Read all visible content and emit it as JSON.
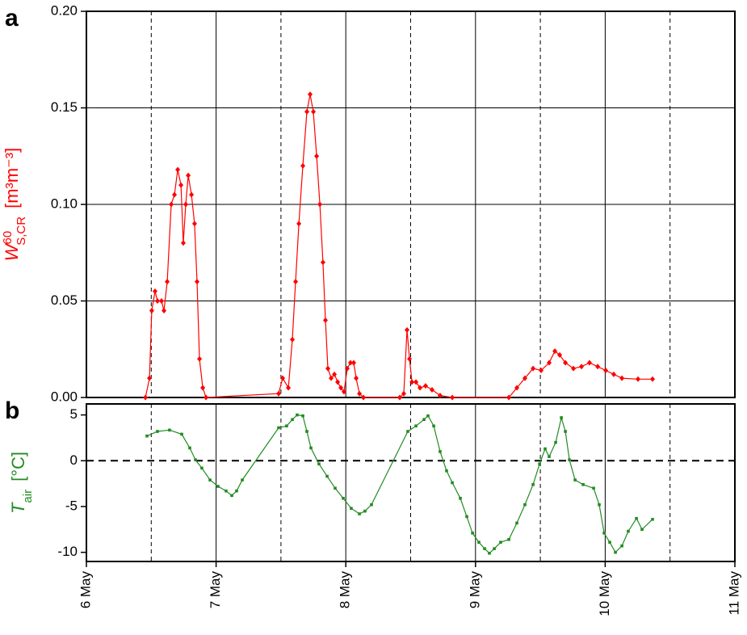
{
  "chart_data": [
    {
      "type": "line",
      "panel_label": "a",
      "marker": "diamond",
      "color": "#ff0000",
      "grid": true,
      "ylabel": {
        "symbol": "W",
        "sup": "60",
        "sub": "S,CR",
        "unit": "[m³m⁻³]"
      },
      "xlim": [
        6,
        11
      ],
      "xticks": [
        6,
        7,
        8,
        9,
        10,
        11
      ],
      "ylim": [
        0,
        0.2
      ],
      "yticks": [
        {
          "value": 0,
          "label": "0.00"
        },
        {
          "value": 0.05,
          "label": "0.05"
        },
        {
          "value": 0.1,
          "label": "0.10"
        },
        {
          "value": 0.15,
          "label": "0.15"
        },
        {
          "value": 0.2,
          "label": "0.20"
        }
      ],
      "x": [
        6.455,
        6.486,
        6.504,
        6.529,
        6.548,
        6.579,
        6.598,
        6.623,
        6.654,
        6.679,
        6.704,
        6.729,
        6.747,
        6.766,
        6.785,
        6.81,
        6.834,
        6.853,
        6.872,
        6.897,
        6.922,
        7.482,
        7.513,
        7.557,
        7.588,
        7.613,
        7.638,
        7.669,
        7.7,
        7.725,
        7.75,
        7.775,
        7.8,
        7.824,
        7.843,
        7.862,
        7.887,
        7.912,
        7.937,
        7.962,
        7.986,
        8.011,
        8.036,
        8.061,
        8.08,
        8.105,
        8.136,
        8.416,
        8.447,
        8.472,
        8.491,
        8.51,
        8.541,
        8.572,
        8.615,
        8.665,
        8.727,
        8.821,
        9.257,
        9.319,
        9.381,
        9.444,
        9.506,
        9.568,
        9.612,
        9.649,
        9.693,
        9.755,
        9.817,
        9.879,
        9.942,
        10.004,
        10.066,
        10.129,
        10.253,
        10.365
      ],
      "values": [
        0.0,
        0.01,
        0.045,
        0.055,
        0.05,
        0.05,
        0.045,
        0.06,
        0.1,
        0.105,
        0.118,
        0.11,
        0.08,
        0.1,
        0.115,
        0.105,
        0.09,
        0.06,
        0.02,
        0.005,
        0.0,
        0.002,
        0.01,
        0.005,
        0.03,
        0.06,
        0.09,
        0.12,
        0.148,
        0.157,
        0.148,
        0.125,
        0.1,
        0.07,
        0.04,
        0.015,
        0.01,
        0.012,
        0.008,
        0.005,
        0.003,
        0.015,
        0.018,
        0.018,
        0.01,
        0.002,
        0.0,
        0.0,
        0.002,
        0.035,
        0.02,
        0.008,
        0.008,
        0.005,
        0.006,
        0.004,
        0.001,
        0.0,
        0.0,
        0.005,
        0.01,
        0.015,
        0.014,
        0.018,
        0.024,
        0.022,
        0.018,
        0.015,
        0.016,
        0.018,
        0.016,
        0.014,
        0.012,
        0.01,
        0.0095,
        0.0095
      ]
    },
    {
      "type": "line",
      "panel_label": "b",
      "marker": "square",
      "color": "#228b22",
      "zero_line": true,
      "ylabel": {
        "symbol": "T",
        "sub": "air",
        "unit": "[°C]"
      },
      "xlim": [
        6,
        11
      ],
      "xticks": [
        {
          "value": 6,
          "label": "6 May"
        },
        {
          "value": 7,
          "label": "7 May"
        },
        {
          "value": 8,
          "label": "8 May"
        },
        {
          "value": 9,
          "label": "9 May"
        },
        {
          "value": 10,
          "label": "10 May"
        },
        {
          "value": 11,
          "label": "11 May"
        }
      ],
      "ylim": [
        -11,
        6.2
      ],
      "yticks": [
        -10,
        -5,
        0,
        5
      ],
      "x": [
        6.467,
        6.548,
        6.641,
        6.735,
        6.797,
        6.841,
        6.89,
        6.953,
        7.015,
        7.077,
        7.121,
        7.158,
        7.202,
        7.482,
        7.544,
        7.588,
        7.625,
        7.669,
        7.7,
        7.731,
        7.793,
        7.856,
        7.918,
        7.98,
        8.042,
        8.105,
        8.148,
        8.198,
        8.478,
        8.541,
        8.603,
        8.634,
        8.678,
        8.727,
        8.777,
        8.821,
        8.883,
        8.933,
        8.977,
        9.026,
        9.07,
        9.107,
        9.145,
        9.194,
        9.257,
        9.319,
        9.381,
        9.444,
        9.494,
        9.537,
        9.568,
        9.618,
        9.662,
        9.693,
        9.724,
        9.768,
        9.83,
        9.911,
        9.954,
        9.992,
        10.035,
        10.079,
        10.129,
        10.178,
        10.241,
        10.284,
        10.365
      ],
      "values": [
        2.7,
        3.2,
        3.35,
        2.9,
        1.4,
        0.1,
        -0.8,
        -2.1,
        -2.8,
        -3.3,
        -3.8,
        -3.3,
        -2.1,
        3.6,
        3.8,
        4.5,
        5.0,
        4.9,
        3.2,
        1.4,
        -0.35,
        -1.7,
        -3.0,
        -4.1,
        -5.2,
        -5.8,
        -5.5,
        -4.8,
        3.2,
        3.8,
        4.5,
        4.9,
        3.8,
        1.0,
        -1.1,
        -2.4,
        -4.1,
        -6.1,
        -7.9,
        -8.9,
        -9.6,
        -10.1,
        -9.6,
        -8.9,
        -8.6,
        -6.8,
        -4.8,
        -2.6,
        -0.35,
        1.3,
        0.45,
        2.0,
        4.7,
        3.2,
        0.1,
        -2.1,
        -2.6,
        -3.0,
        -4.8,
        -7.9,
        -8.9,
        -10.0,
        -9.3,
        -7.7,
        -6.3,
        -7.5,
        -6.4
      ]
    }
  ]
}
